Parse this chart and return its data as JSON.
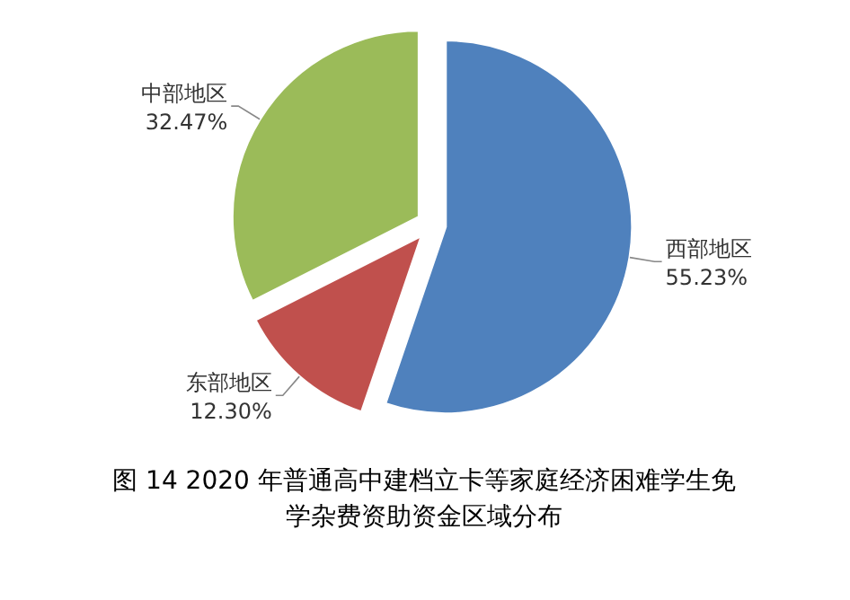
{
  "chart_data": {
    "type": "pie",
    "title": "图 14  2020 年普通高中建档立卡等家庭经济困难学生免学杂费资助资金区域分布",
    "categories": [
      "西部地区",
      "东部地区",
      "中部地区"
    ],
    "values": [
      55.23,
      12.3,
      32.47
    ],
    "value_labels": [
      "55.23%",
      "12.30%",
      "32.47%"
    ],
    "colors": [
      "#4f81bd",
      "#c0504d",
      "#9bbb59"
    ]
  }
}
